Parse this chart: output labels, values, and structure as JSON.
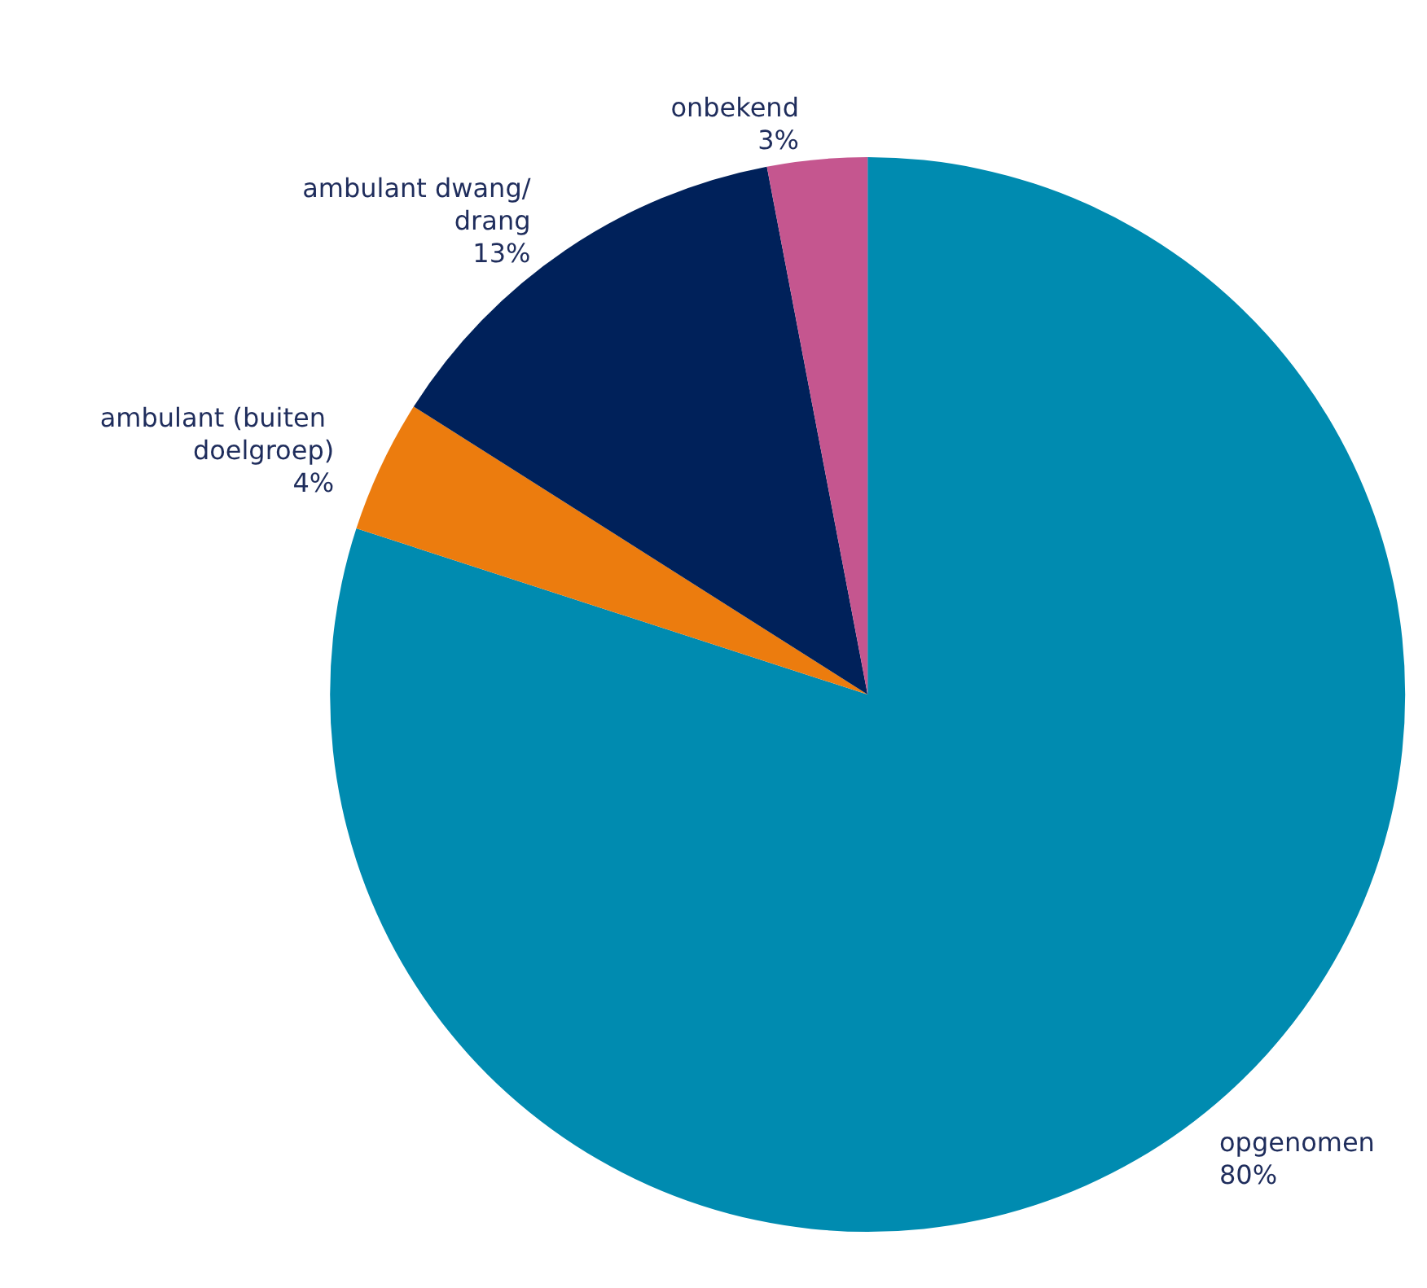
{
  "chart_data": {
    "type": "pie",
    "categories": [
      "opgenomen",
      "ambulant (buiten doelgroep)",
      "ambulant dwang/drang",
      "onbekend"
    ],
    "values": [
      80,
      4,
      13,
      3
    ],
    "colors": [
      "#008bb0",
      "#ec7c0e",
      "#00215a",
      "#c5568f"
    ],
    "value_labels": [
      "80%",
      "4%",
      "13%",
      "3%"
    ],
    "legend": false
  }
}
